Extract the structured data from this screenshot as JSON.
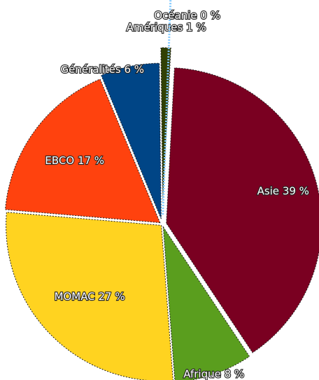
{
  "chart_data": {
    "type": "pie",
    "categories": [
      "Asie",
      "Afrique",
      "MOMAC",
      "EBCO",
      "Généralités",
      "Amériques",
      "Océanie"
    ],
    "values": [
      39,
      8,
      27,
      17,
      6,
      1,
      0
    ],
    "value_labels": [
      "39 %",
      "8 %",
      "27 %",
      "17 %",
      "6 %",
      "1 %",
      "0 %"
    ],
    "colors": [
      "#7a0021",
      "#5a9e1e",
      "#ffd320",
      "#ff420e",
      "#004586",
      "#314004",
      "#83caff"
    ]
  }
}
